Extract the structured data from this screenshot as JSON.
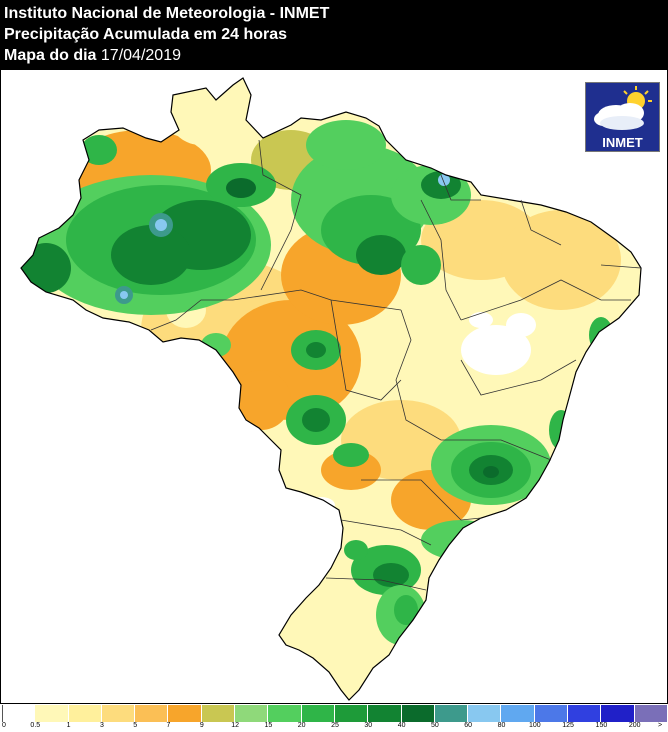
{
  "header": {
    "line1": "Instituto Nacional de Meteorologia - INMET",
    "line2": "Precipitação Acumulada em 24 horas",
    "line3_label": "Mapa do dia",
    "line3_date": "17/04/2019"
  },
  "logo": {
    "text": "INMET",
    "icon": "sun-cloud-icon"
  },
  "legend": {
    "ticks": [
      "0",
      "0.5",
      "1",
      "3",
      "5",
      "7",
      "9",
      "12",
      "15",
      "20",
      "25",
      "30",
      "40",
      "50",
      "60",
      "80",
      "100",
      "125",
      "150",
      "200",
      ">"
    ],
    "colors": [
      "#ffffff",
      "#fff8b8",
      "#fff09c",
      "#fddc7d",
      "#fbbf55",
      "#f7a52b",
      "#c9c752",
      "#8fd97a",
      "#53cf5e",
      "#2fb548",
      "#1e9b39",
      "#128332",
      "#0b6b2c",
      "#3d9a8c",
      "#88c8f0",
      "#60a8f0",
      "#4c78e8",
      "#3040e0",
      "#2020c8",
      "#7a6fb8",
      "#505050"
    ]
  },
  "map": {
    "palette": {
      "dry": "#fff8b8",
      "light": "#fddc7d",
      "orange": "#f7a52b",
      "olive": "#c9c752",
      "green_light": "#53cf5e",
      "green_mid": "#2fb548",
      "green_dark": "#128332",
      "green_deep": "#0b6b2c",
      "blue": "#88c8f0",
      "none": "#ffffff"
    }
  }
}
